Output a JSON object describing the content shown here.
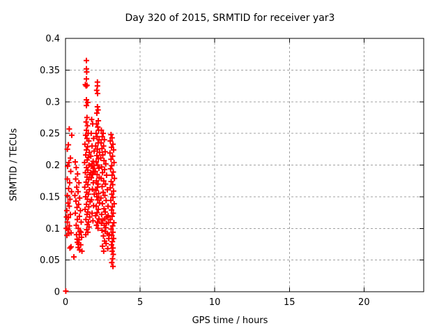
{
  "chart_data": {
    "type": "scatter",
    "title": "Day 320 of 2015, SRMTID for receiver yar3",
    "xlabel": "GPS time / hours",
    "ylabel": "SRMTID / TECUs",
    "xlim": [
      0,
      24
    ],
    "ylim": [
      0,
      0.4
    ],
    "xticks": {
      "values": [
        0,
        5,
        10,
        15,
        20
      ],
      "labels": [
        "0",
        "5",
        "10",
        "15",
        "20"
      ]
    },
    "yticks": {
      "values": [
        0,
        0.05,
        0.1,
        0.15,
        0.2,
        0.25,
        0.3,
        0.35,
        0.4
      ],
      "labels": [
        "0",
        "0.05",
        "0.1",
        "0.15",
        "0.2",
        "0.25",
        "0.3",
        "0.35",
        "0.4"
      ]
    },
    "grid": "dashed",
    "grid_color": "#a0a0a0",
    "border_color": "#000000",
    "legend": "none",
    "marker": {
      "shape": "plus",
      "color": "#ff0000",
      "size": 9
    },
    "series": [
      {
        "name": "SRMTID",
        "points": [
          [
            0.02,
            0.001
          ],
          [
            0.25,
            0.257
          ],
          [
            0.42,
            0.247
          ],
          [
            0.19,
            0.232
          ],
          [
            0.12,
            0.225
          ],
          [
            0.33,
            0.211
          ],
          [
            0.23,
            0.204
          ],
          [
            0.14,
            0.198
          ],
          [
            0.35,
            0.19
          ],
          [
            0.12,
            0.178
          ],
          [
            0.28,
            0.172
          ],
          [
            0.21,
            0.163
          ],
          [
            0.4,
            0.158
          ],
          [
            0.12,
            0.152
          ],
          [
            0.3,
            0.146
          ],
          [
            0.17,
            0.14
          ],
          [
            0.25,
            0.135
          ],
          [
            0.09,
            0.128
          ],
          [
            0.33,
            0.122
          ],
          [
            0.19,
            0.117
          ],
          [
            0.12,
            0.11
          ],
          [
            0.26,
            0.104
          ],
          [
            0.16,
            0.098
          ],
          [
            0.1,
            0.089
          ],
          [
            0.23,
            0.092
          ],
          [
            0.37,
            0.093
          ],
          [
            0.3,
            0.069
          ],
          [
            0.37,
            0.071
          ],
          [
            0.56,
            0.055
          ],
          [
            0.07,
            0.118
          ],
          [
            0.05,
            0.1
          ],
          [
            0.65,
            0.205
          ],
          [
            0.72,
            0.196
          ],
          [
            0.81,
            0.186
          ],
          [
            0.68,
            0.178
          ],
          [
            0.9,
            0.172
          ],
          [
            0.75,
            0.165
          ],
          [
            0.84,
            0.158
          ],
          [
            0.63,
            0.152
          ],
          [
            0.95,
            0.148
          ],
          [
            0.7,
            0.143
          ],
          [
            0.88,
            0.138
          ],
          [
            0.77,
            0.133
          ],
          [
            1.0,
            0.128
          ],
          [
            0.66,
            0.124
          ],
          [
            0.93,
            0.119
          ],
          [
            0.79,
            0.114
          ],
          [
            1.05,
            0.11
          ],
          [
            0.72,
            0.105
          ],
          [
            0.86,
            0.1
          ],
          [
            0.97,
            0.095
          ],
          [
            0.74,
            0.09
          ],
          [
            1.08,
            0.086
          ],
          [
            0.9,
            0.082
          ],
          [
            0.8,
            0.078
          ],
          [
            1.02,
            0.074
          ],
          [
            0.85,
            0.07
          ],
          [
            0.95,
            0.066
          ],
          [
            1.1,
            0.064
          ],
          [
            0.88,
            0.075
          ],
          [
            0.78,
            0.083
          ],
          [
            0.92,
            0.09
          ],
          [
            1.04,
            0.094
          ],
          [
            1.4,
            0.365
          ],
          [
            1.4,
            0.352
          ],
          [
            1.42,
            0.347
          ],
          [
            1.4,
            0.336
          ],
          [
            1.33,
            0.327
          ],
          [
            1.38,
            0.325
          ],
          [
            1.44,
            0.326
          ],
          [
            1.4,
            0.303
          ],
          [
            1.49,
            0.299
          ],
          [
            1.4,
            0.294
          ],
          [
            1.44,
            0.275
          ],
          [
            1.38,
            0.268
          ],
          [
            1.47,
            0.262
          ],
          [
            1.4,
            0.255
          ],
          [
            1.52,
            0.25
          ],
          [
            1.35,
            0.247
          ],
          [
            1.44,
            0.242
          ],
          [
            1.56,
            0.238
          ],
          [
            1.3,
            0.233
          ],
          [
            1.48,
            0.229
          ],
          [
            1.4,
            0.224
          ],
          [
            1.6,
            0.22
          ],
          [
            1.36,
            0.216
          ],
          [
            1.52,
            0.212
          ],
          [
            1.45,
            0.208
          ],
          [
            1.28,
            0.204
          ],
          [
            1.57,
            0.2
          ],
          [
            1.41,
            0.196
          ],
          [
            1.49,
            0.192
          ],
          [
            1.33,
            0.188
          ],
          [
            1.62,
            0.185
          ],
          [
            1.44,
            0.181
          ],
          [
            1.55,
            0.177
          ],
          [
            1.38,
            0.173
          ],
          [
            1.5,
            0.169
          ],
          [
            1.29,
            0.165
          ],
          [
            1.6,
            0.161
          ],
          [
            1.42,
            0.157
          ],
          [
            1.53,
            0.154
          ],
          [
            1.35,
            0.15
          ],
          [
            1.47,
            0.146
          ],
          [
            1.65,
            0.142
          ],
          [
            1.4,
            0.138
          ],
          [
            1.56,
            0.134
          ],
          [
            1.31,
            0.13
          ],
          [
            1.5,
            0.126
          ],
          [
            1.44,
            0.122
          ],
          [
            1.62,
            0.118
          ],
          [
            1.37,
            0.114
          ],
          [
            1.54,
            0.11
          ],
          [
            1.46,
            0.106
          ],
          [
            1.58,
            0.102
          ],
          [
            1.42,
            0.098
          ],
          [
            1.5,
            0.094
          ],
          [
            1.36,
            0.09
          ],
          [
            2.14,
            0.331
          ],
          [
            2.14,
            0.325
          ],
          [
            2.09,
            0.318
          ],
          [
            2.15,
            0.313
          ],
          [
            2.14,
            0.292
          ],
          [
            2.18,
            0.287
          ],
          [
            2.1,
            0.282
          ],
          [
            2.2,
            0.27
          ],
          [
            2.08,
            0.265
          ],
          [
            2.16,
            0.26
          ],
          [
            2.22,
            0.255
          ],
          [
            2.05,
            0.25
          ],
          [
            2.12,
            0.245
          ],
          [
            2.25,
            0.24
          ],
          [
            2.18,
            0.235
          ],
          [
            2.02,
            0.23
          ],
          [
            2.14,
            0.225
          ],
          [
            2.28,
            0.22
          ],
          [
            2.1,
            0.215
          ],
          [
            2.2,
            0.21
          ],
          [
            2.06,
            0.205
          ],
          [
            2.16,
            0.2
          ],
          [
            2.24,
            0.195
          ],
          [
            2.0,
            0.19
          ],
          [
            2.12,
            0.185
          ],
          [
            2.26,
            0.18
          ],
          [
            2.08,
            0.175
          ],
          [
            2.18,
            0.17
          ],
          [
            2.14,
            0.165
          ],
          [
            2.04,
            0.16
          ],
          [
            2.22,
            0.155
          ],
          [
            2.1,
            0.15
          ],
          [
            2.16,
            0.145
          ],
          [
            2.28,
            0.14
          ],
          [
            2.06,
            0.135
          ],
          [
            2.2,
            0.13
          ],
          [
            2.12,
            0.125
          ],
          [
            2.02,
            0.12
          ],
          [
            2.24,
            0.115
          ],
          [
            2.15,
            0.11
          ],
          [
            2.08,
            0.105
          ],
          [
            2.18,
            0.1
          ],
          [
            1.75,
            0.272
          ],
          [
            1.82,
            0.265
          ],
          [
            1.72,
            0.25
          ],
          [
            1.88,
            0.242
          ],
          [
            1.78,
            0.23
          ],
          [
            1.92,
            0.222
          ],
          [
            1.7,
            0.214
          ],
          [
            1.85,
            0.206
          ],
          [
            1.76,
            0.198
          ],
          [
            1.9,
            0.19
          ],
          [
            1.73,
            0.18
          ],
          [
            1.86,
            0.172
          ],
          [
            1.8,
            0.162
          ],
          [
            1.93,
            0.154
          ],
          [
            1.74,
            0.145
          ],
          [
            1.88,
            0.136
          ],
          [
            1.78,
            0.124
          ],
          [
            1.84,
            0.112
          ],
          [
            1.78,
            0.202
          ],
          [
            1.85,
            0.195
          ],
          [
            1.7,
            0.188
          ],
          [
            1.92,
            0.199
          ],
          [
            1.81,
            0.185
          ],
          [
            2.4,
            0.255
          ],
          [
            2.52,
            0.25
          ],
          [
            2.46,
            0.245
          ],
          [
            2.6,
            0.24
          ],
          [
            2.38,
            0.235
          ],
          [
            2.55,
            0.23
          ],
          [
            2.44,
            0.226
          ],
          [
            2.65,
            0.221
          ],
          [
            2.5,
            0.216
          ],
          [
            2.36,
            0.211
          ],
          [
            2.58,
            0.207
          ],
          [
            2.7,
            0.202
          ],
          [
            2.42,
            0.197
          ],
          [
            2.62,
            0.193
          ],
          [
            2.48,
            0.188
          ],
          [
            2.75,
            0.184
          ],
          [
            2.39,
            0.179
          ],
          [
            2.56,
            0.175
          ],
          [
            2.68,
            0.17
          ],
          [
            2.45,
            0.166
          ],
          [
            2.8,
            0.161
          ],
          [
            2.52,
            0.157
          ],
          [
            2.64,
            0.152
          ],
          [
            2.37,
            0.148
          ],
          [
            2.72,
            0.144
          ],
          [
            2.47,
            0.139
          ],
          [
            2.85,
            0.135
          ],
          [
            2.58,
            0.131
          ],
          [
            2.66,
            0.126
          ],
          [
            2.42,
            0.122
          ],
          [
            2.76,
            0.118
          ],
          [
            2.5,
            0.113
          ],
          [
            2.88,
            0.109
          ],
          [
            2.6,
            0.105
          ],
          [
            2.7,
            0.101
          ],
          [
            2.44,
            0.097
          ],
          [
            2.8,
            0.092
          ],
          [
            2.54,
            0.088
          ],
          [
            2.9,
            0.084
          ],
          [
            2.62,
            0.08
          ],
          [
            2.72,
            0.076
          ],
          [
            2.48,
            0.072
          ],
          [
            2.83,
            0.068
          ],
          [
            2.56,
            0.064
          ],
          [
            2.92,
            0.09
          ],
          [
            2.66,
            0.095
          ],
          [
            2.74,
            0.108
          ],
          [
            2.86,
            0.12
          ],
          [
            2.4,
            0.108
          ],
          [
            2.63,
            0.115
          ],
          [
            3.05,
            0.248
          ],
          [
            3.12,
            0.243
          ],
          [
            3.0,
            0.238
          ],
          [
            3.18,
            0.233
          ],
          [
            3.08,
            0.228
          ],
          [
            3.22,
            0.224
          ],
          [
            2.98,
            0.219
          ],
          [
            3.15,
            0.214
          ],
          [
            3.05,
            0.209
          ],
          [
            3.25,
            0.204
          ],
          [
            3.1,
            0.199
          ],
          [
            3.02,
            0.194
          ],
          [
            3.2,
            0.189
          ],
          [
            3.12,
            0.184
          ],
          [
            3.28,
            0.179
          ],
          [
            3.06,
            0.174
          ],
          [
            3.16,
            0.169
          ],
          [
            3.0,
            0.164
          ],
          [
            3.22,
            0.159
          ],
          [
            3.1,
            0.154
          ],
          [
            3.18,
            0.149
          ],
          [
            3.04,
            0.144
          ],
          [
            3.26,
            0.139
          ],
          [
            3.14,
            0.134
          ],
          [
            3.08,
            0.129
          ],
          [
            3.2,
            0.124
          ],
          [
            3.12,
            0.119
          ],
          [
            3.0,
            0.114
          ],
          [
            3.24,
            0.109
          ],
          [
            3.16,
            0.104
          ],
          [
            3.06,
            0.099
          ],
          [
            3.18,
            0.094
          ],
          [
            3.1,
            0.089
          ],
          [
            3.22,
            0.084
          ],
          [
            3.14,
            0.079
          ],
          [
            3.08,
            0.074
          ],
          [
            3.18,
            0.069
          ],
          [
            3.12,
            0.064
          ],
          [
            3.2,
            0.059
          ],
          [
            3.15,
            0.052
          ],
          [
            3.1,
            0.046
          ],
          [
            3.18,
            0.04
          ]
        ]
      }
    ]
  }
}
